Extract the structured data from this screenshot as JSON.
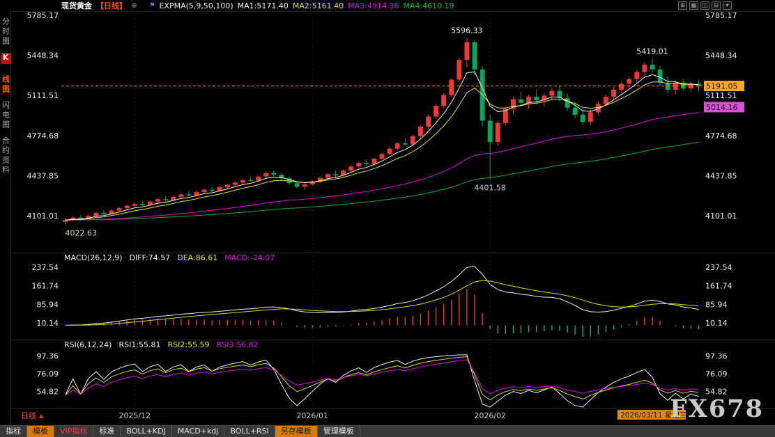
{
  "topbar": {
    "symbol": "现货黄金",
    "period": "【日线】",
    "add_icon": "⊕",
    "flag_icon": "⚑",
    "indicator": "EXPMA(5,9,50,100)",
    "ma_values": [
      {
        "label": "MA1:5171.40",
        "color": "#f5f5f5"
      },
      {
        "label": "MA2:5161.40",
        "color": "#e8e800"
      },
      {
        "label": "MA3:4914.36",
        "color": "#e800e8"
      },
      {
        "label": "MA4:4610.19",
        "color": "#00c020"
      }
    ],
    "window_icons": [
      {
        "glyph": "⊞"
      },
      {
        "glyph": "▦"
      },
      {
        "glyph": "◫"
      },
      {
        "glyph": "⊟"
      },
      {
        "glyph": "▾"
      }
    ]
  },
  "sidebar": {
    "items": [
      {
        "label": "分时图",
        "active": false
      },
      {
        "badge": "K",
        "label": "线图",
        "active": true
      },
      {
        "label": "闪电图",
        "active": false
      },
      {
        "label": "合约资料",
        "active": false
      }
    ]
  },
  "main_panel": {
    "axis_labels": [
      "5785.17",
      "5448.34",
      "5111.51",
      "4774.68",
      "4437.85",
      "4101.01"
    ],
    "price_tags": [
      {
        "text": "5191.05",
        "value": 5191.05,
        "bg": "#f7a823",
        "fg": "#111111"
      },
      {
        "text": "5014.16",
        "value": 5014.16,
        "bg": "#d84fd8",
        "fg": "#111111"
      }
    ],
    "annotations": [
      {
        "text": "5596.33",
        "bar": 52,
        "price": 5596.33,
        "where": "above",
        "color": "#eaeaea"
      },
      {
        "text": "5419.01",
        "bar": 76,
        "price": 5419.01,
        "where": "above",
        "color": "#eaeaea"
      },
      {
        "text": "4401.58",
        "bar": 55,
        "price": 4401.58,
        "where": "below",
        "color": "#ccccdd"
      },
      {
        "text": "4022.63",
        "bar": 0,
        "price": 4022.63,
        "where": "below",
        "color": "#d8d878",
        "anchor": "start"
      }
    ]
  },
  "macd_panel": {
    "header": "MACD(26,12,9)",
    "values": [
      {
        "label": "DIFF:74.57",
        "color": "#f5f5f5"
      },
      {
        "label": "DEA:86.61",
        "color": "#e8e800"
      },
      {
        "label": "MACD:-24.07",
        "color": "#e800e8"
      }
    ],
    "axis_labels": [
      "237.54",
      "161.74",
      "85.94",
      "10.14"
    ]
  },
  "rsi_panel": {
    "header": "RSI(6,12,24)",
    "values": [
      {
        "label": "RSI1:55.81",
        "color": "#f5f5f5"
      },
      {
        "label": "RSI2:55.59",
        "color": "#e8e800"
      },
      {
        "label": "RSI3:56.82",
        "color": "#e800e8"
      }
    ],
    "axis_labels": [
      "97.36",
      "76.09",
      "54.82"
    ]
  },
  "xaxis": {
    "period": "日线",
    "period_arrow": "▲",
    "months": [
      {
        "text": "2025/12",
        "bar": 9
      },
      {
        "text": "2026/01",
        "bar": 32
      },
      {
        "text": "2026/02",
        "bar": 55
      }
    ],
    "current_date": "2026/03/11 星期三"
  },
  "toolbar": {
    "tabs": [
      {
        "label": "指标",
        "style": "plain"
      },
      {
        "label": "模板",
        "style": "active"
      },
      {
        "label": "VIP指标",
        "style": "vip"
      },
      {
        "label": "标准",
        "style": "plain"
      },
      {
        "label": "BOLL+KDJ",
        "style": "plain"
      },
      {
        "label": "MACD+kdj",
        "style": "plain"
      },
      {
        "label": "BOLL+RSI",
        "style": "plain"
      },
      {
        "label": "另存模板",
        "style": "active"
      },
      {
        "label": "管理模板",
        "style": "plain"
      }
    ]
  },
  "watermark": "FX678",
  "chart_data": {
    "type": "candlestick",
    "symbol": "现货黄金",
    "period": "日线",
    "y_range": [
      3832,
      5797
    ],
    "overlays": {
      "expma_periods": [
        5,
        9,
        50,
        100
      ]
    },
    "indicators": {
      "macd": [
        26,
        12,
        9
      ],
      "rsi": [
        6,
        12,
        24
      ]
    },
    "palette": {
      "up": "#f23535",
      "down": "#00a860",
      "macd_down": "#00b090",
      "last_price_line": "#ff9000",
      "ma": [
        "#f2f2f2",
        "#e8e800",
        "#e000e0",
        "#00b030"
      ]
    },
    "candles": [
      [
        4050,
        4075,
        4022.63,
        4065
      ],
      [
        4065,
        4095,
        4055,
        4085
      ],
      [
        4085,
        4105,
        4060,
        4070
      ],
      [
        4070,
        4110,
        4065,
        4100
      ],
      [
        4100,
        4135,
        4090,
        4125
      ],
      [
        4125,
        4150,
        4105,
        4115
      ],
      [
        4115,
        4155,
        4110,
        4145
      ],
      [
        4145,
        4175,
        4130,
        4165
      ],
      [
        4165,
        4195,
        4150,
        4185
      ],
      [
        4185,
        4210,
        4170,
        4200
      ],
      [
        4200,
        4225,
        4180,
        4190
      ],
      [
        4190,
        4230,
        4185,
        4220
      ],
      [
        4220,
        4250,
        4205,
        4240
      ],
      [
        4240,
        4265,
        4220,
        4230
      ],
      [
        4230,
        4270,
        4225,
        4260
      ],
      [
        4260,
        4290,
        4245,
        4280
      ],
      [
        4280,
        4305,
        4260,
        4270
      ],
      [
        4270,
        4310,
        4265,
        4300
      ],
      [
        4300,
        4330,
        4285,
        4320
      ],
      [
        4320,
        4345,
        4300,
        4310
      ],
      [
        4310,
        4350,
        4305,
        4340
      ],
      [
        4340,
        4370,
        4325,
        4360
      ],
      [
        4360,
        4390,
        4345,
        4380
      ],
      [
        4380,
        4410,
        4365,
        4400
      ],
      [
        4400,
        4430,
        4385,
        4395
      ],
      [
        4395,
        4440,
        4390,
        4430
      ],
      [
        4430,
        4470,
        4415,
        4460
      ],
      [
        4460,
        4480,
        4430,
        4445
      ],
      [
        4445,
        4460,
        4400,
        4415
      ],
      [
        4415,
        4430,
        4360,
        4375
      ],
      [
        4375,
        4395,
        4330,
        4345
      ],
      [
        4345,
        4375,
        4320,
        4365
      ],
      [
        4365,
        4400,
        4350,
        4390
      ],
      [
        4390,
        4430,
        4375,
        4420
      ],
      [
        4420,
        4460,
        4405,
        4450
      ],
      [
        4450,
        4480,
        4425,
        4440
      ],
      [
        4440,
        4490,
        4435,
        4480
      ],
      [
        4480,
        4525,
        4470,
        4515
      ],
      [
        4515,
        4555,
        4500,
        4545
      ],
      [
        4545,
        4575,
        4520,
        4535
      ],
      [
        4535,
        4590,
        4530,
        4580
      ],
      [
        4580,
        4630,
        4570,
        4620
      ],
      [
        4620,
        4680,
        4610,
        4665
      ],
      [
        4665,
        4720,
        4650,
        4710
      ],
      [
        4710,
        4750,
        4685,
        4700
      ],
      [
        4700,
        4780,
        4695,
        4770
      ],
      [
        4770,
        4860,
        4755,
        4850
      ],
      [
        4850,
        4950,
        4830,
        4935
      ],
      [
        4935,
        5040,
        4915,
        5025
      ],
      [
        5025,
        5130,
        5000,
        5115
      ],
      [
        5115,
        5260,
        5095,
        5245
      ],
      [
        5245,
        5430,
        5220,
        5410
      ],
      [
        5410,
        5596.33,
        5350,
        5560
      ],
      [
        5560,
        5580,
        5280,
        5330
      ],
      [
        5330,
        5360,
        4850,
        4900
      ],
      [
        4900,
        4950,
        4401.58,
        4720
      ],
      [
        4720,
        4900,
        4690,
        4880
      ],
      [
        4880,
        5020,
        4860,
        5000
      ],
      [
        5000,
        5100,
        4960,
        5080
      ],
      [
        5080,
        5140,
        5020,
        5050
      ],
      [
        5050,
        5120,
        5000,
        5100
      ],
      [
        5100,
        5160,
        5040,
        5070
      ],
      [
        5070,
        5130,
        5020,
        5110
      ],
      [
        5110,
        5170,
        5080,
        5150
      ],
      [
        5150,
        5190,
        5060,
        5090
      ],
      [
        5090,
        5130,
        4980,
        5010
      ],
      [
        5010,
        5060,
        4920,
        4950
      ],
      [
        4950,
        5000,
        4870,
        4890
      ],
      [
        4890,
        4990,
        4860,
        4970
      ],
      [
        4970,
        5060,
        4950,
        5040
      ],
      [
        5040,
        5120,
        5020,
        5100
      ],
      [
        5100,
        5180,
        5080,
        5160
      ],
      [
        5160,
        5230,
        5130,
        5210
      ],
      [
        5210,
        5270,
        5170,
        5250
      ],
      [
        5250,
        5330,
        5220,
        5310
      ],
      [
        5310,
        5390,
        5280,
        5370
      ],
      [
        5370,
        5419.01,
        5300,
        5330
      ],
      [
        5330,
        5360,
        5190,
        5220
      ],
      [
        5220,
        5270,
        5130,
        5160
      ],
      [
        5160,
        5240,
        5120,
        5220
      ],
      [
        5220,
        5250,
        5150,
        5170
      ],
      [
        5170,
        5230,
        5140,
        5210
      ],
      [
        5210,
        5240,
        5150,
        5191.05
      ]
    ]
  }
}
